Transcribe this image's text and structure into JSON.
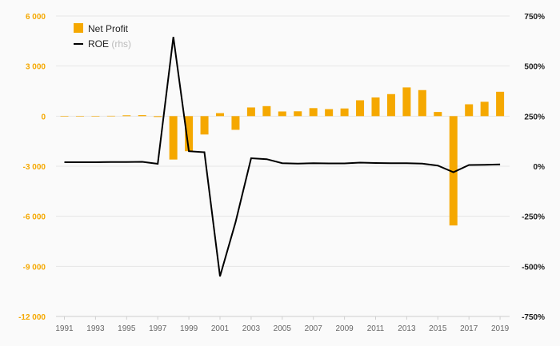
{
  "chart_data": {
    "type": "bar",
    "x": [
      1991,
      1992,
      1993,
      1994,
      1995,
      1996,
      1997,
      1998,
      1999,
      2000,
      2001,
      2002,
      2003,
      2004,
      2005,
      2006,
      2007,
      2008,
      2009,
      2010,
      2011,
      2012,
      2013,
      2014,
      2015,
      2016,
      2017,
      2018,
      2019
    ],
    "x_tick_labels": [
      "1991",
      "1993",
      "1995",
      "1997",
      "1999",
      "2001",
      "2003",
      "2005",
      "2007",
      "2009",
      "2011",
      "2013",
      "2015",
      "2017",
      "2019"
    ],
    "y_left_ticks": [
      "6 000",
      "3 000",
      "0",
      "-3 000",
      "-6 000",
      "-9 000",
      "-12 000"
    ],
    "y_right_ticks": [
      "750%",
      "500%",
      "250%",
      "0%",
      "-250%",
      "-500%",
      "-750%"
    ],
    "ylim_left": [
      -12000,
      6000
    ],
    "ylim_right": [
      -750,
      750
    ],
    "grid": true,
    "legend_position": "top-left",
    "series": [
      {
        "name": "Net Profit",
        "type": "bar",
        "axis": "left",
        "color": "#f5a800",
        "values": [
          -30,
          -20,
          -10,
          20,
          50,
          60,
          -50,
          -2600,
          -2100,
          -1100,
          180,
          -820,
          520,
          600,
          280,
          290,
          480,
          420,
          460,
          950,
          1120,
          1320,
          1720,
          1560,
          250,
          -6550,
          710,
          860,
          1460
        ]
      },
      {
        "name": "ROE",
        "name_suffix": "(rhs)",
        "type": "line",
        "axis": "right",
        "color": "#000000",
        "values": [
          20,
          20,
          20,
          21,
          21,
          22,
          12,
          645,
          75,
          70,
          -550,
          -280,
          40,
          35,
          15,
          13,
          15,
          14,
          14,
          18,
          16,
          15,
          15,
          13,
          3,
          -30,
          6,
          7,
          9
        ]
      }
    ]
  }
}
